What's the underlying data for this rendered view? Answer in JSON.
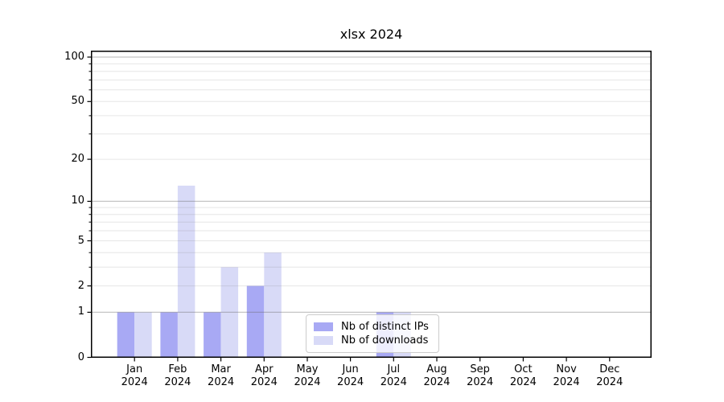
{
  "chart_data": {
    "type": "bar",
    "title": "xlsx 2024",
    "categories": [
      "Jan 2024",
      "Feb 2024",
      "Mar 2024",
      "Apr 2024",
      "May 2024",
      "Jun 2024",
      "Jul 2024",
      "Aug 2024",
      "Sep 2024",
      "Oct 2024",
      "Nov 2024",
      "Dec 2024"
    ],
    "series": [
      {
        "name": "Nb of distinct IPs",
        "color": "#a8a9f4",
        "values": [
          1,
          1,
          1,
          2,
          0,
          0,
          1,
          0,
          0,
          0,
          0,
          0
        ]
      },
      {
        "name": "Nb of downloads",
        "color": "#d8daf7",
        "values": [
          1,
          13,
          3,
          4,
          0,
          0,
          1,
          0,
          0,
          0,
          0,
          0
        ]
      }
    ],
    "yscale": "log1p",
    "y_ticks": [
      0,
      1,
      2,
      5,
      10,
      20,
      50,
      100
    ],
    "y_minor_gridlines": [
      2,
      3,
      4,
      5,
      6,
      7,
      8,
      9,
      20,
      30,
      40,
      50,
      60,
      70,
      80,
      90
    ],
    "y_major_gridlines": [
      1,
      10,
      100
    ],
    "ylim": [
      0,
      112
    ],
    "xlabel": "",
    "ylabel": "",
    "grid": true,
    "legend_position": "bottom-center",
    "background_color": "#ffffff",
    "spine_color": "#000000"
  }
}
